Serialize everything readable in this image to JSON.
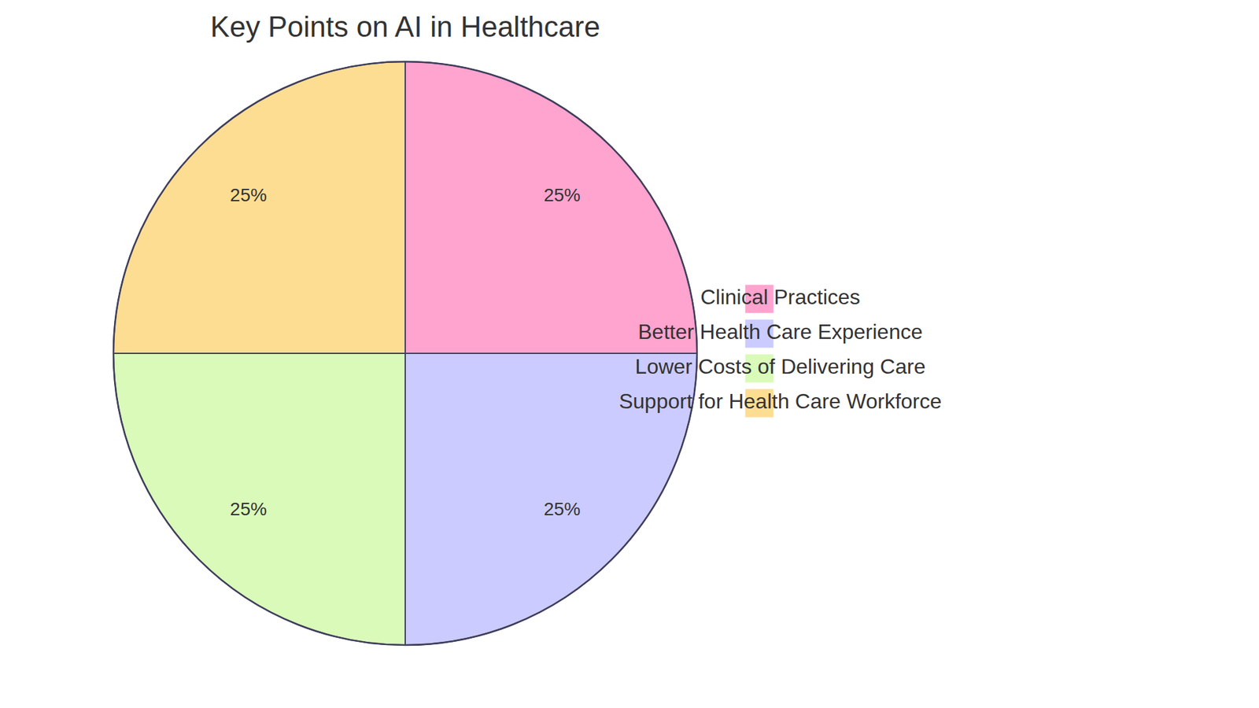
{
  "chart_data": {
    "type": "pie",
    "title": "Key Points on AI in Healthcare",
    "categories": [
      "Clinical Practices",
      "Better Health Care Experience",
      "Lower Costs of Delivering Care",
      "Support for Health Care Workforce"
    ],
    "values": [
      25,
      25,
      25,
      25
    ],
    "value_labels": [
      "25%",
      "25%",
      "25%",
      "25%"
    ],
    "colors": [
      "#ffa3cf",
      "#cbcbff",
      "#dafab9",
      "#fddd92"
    ],
    "data_labels": true,
    "legend": "right"
  }
}
